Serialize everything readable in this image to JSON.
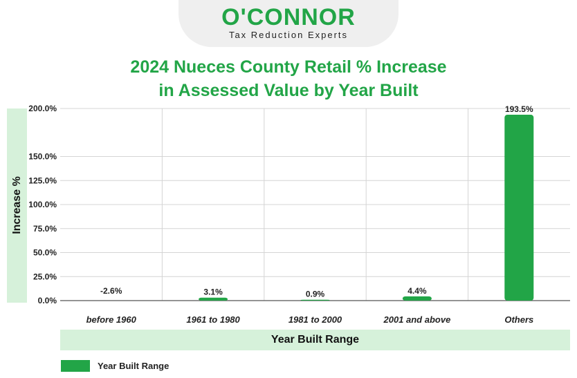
{
  "logo": {
    "name": "O'CONNOR",
    "tagline": "Tax Reduction Experts"
  },
  "colors": {
    "brand_green": "#22a547",
    "band_green": "#d6f1da",
    "grid": "#d4d4d4"
  },
  "chart_data": {
    "type": "bar",
    "title_lines": [
      "2024 Nueces County Retail % Increase",
      "in Assessed Value by Year Built"
    ],
    "xlabel": "Year Built Range",
    "ylabel": "Increase %",
    "categories": [
      "before 1960",
      "1961 to 1980",
      "1981 to 2000",
      "2001 and above",
      "Others"
    ],
    "series": [
      {
        "name": "Year Built Range",
        "values": [
          -2.6,
          3.1,
          0.9,
          4.4,
          193.5
        ],
        "data_labels": [
          "-2.6%",
          "3.1%",
          "0.9%",
          "4.4%",
          "193.5%"
        ]
      }
    ],
    "ylim": [
      0,
      200
    ],
    "yticks": [
      "0.0%",
      "25.0%",
      "50.0%",
      "75.0%",
      "100.0%",
      "125.0%",
      "150.0%",
      "200.0%"
    ],
    "ytick_values": [
      0,
      25,
      50,
      75,
      100,
      125,
      150,
      200
    ],
    "grid": true,
    "legend_position": "bottom-left"
  }
}
